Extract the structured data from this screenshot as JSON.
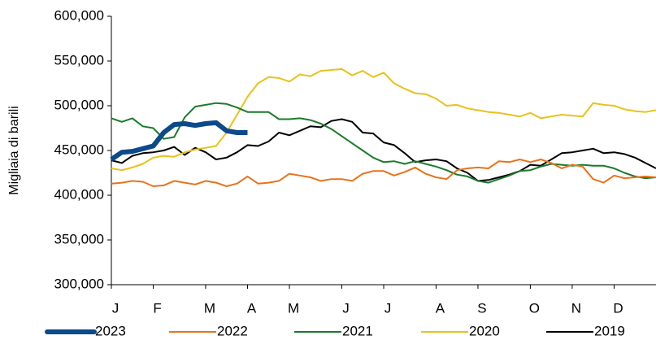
{
  "chart_data": {
    "type": "line",
    "y_label": "Migliaia di barili",
    "categories": [
      "J",
      null,
      null,
      null,
      "F",
      null,
      null,
      null,
      null,
      "M",
      null,
      null,
      null,
      "A",
      null,
      null,
      null,
      "M",
      null,
      null,
      null,
      null,
      "J",
      null,
      null,
      null,
      "J",
      null,
      null,
      null,
      null,
      "A",
      null,
      null,
      null,
      "S",
      null,
      null,
      null,
      null,
      "O",
      null,
      null,
      null,
      "N",
      null,
      null,
      null,
      "D",
      null,
      null,
      null,
      null
    ],
    "series": [
      {
        "name": "2023",
        "color": "#0c4a8a",
        "width": 6,
        "values": [
          440000,
          448000,
          449000,
          452000,
          455000,
          470000,
          479000,
          480000,
          478000,
          480000,
          481000,
          472000,
          470000,
          470000,
          null,
          null,
          null,
          null,
          null,
          null,
          null,
          null,
          null,
          null,
          null,
          null,
          null,
          null,
          null,
          null,
          null,
          null,
          null,
          null,
          null,
          null,
          null,
          null,
          null,
          null,
          null,
          null,
          null,
          null,
          null,
          null,
          null,
          null,
          null,
          null,
          null,
          null,
          null
        ]
      },
      {
        "name": "2022",
        "color": "#e8731a",
        "width": 2,
        "values": [
          413000,
          414000,
          416000,
          415000,
          410000,
          411000,
          416000,
          414000,
          412000,
          416000,
          414000,
          410000,
          413000,
          421000,
          413000,
          414000,
          416000,
          424000,
          422000,
          420000,
          416000,
          418000,
          418000,
          416000,
          424000,
          427000,
          427000,
          422000,
          426000,
          431000,
          424000,
          420000,
          418000,
          428000,
          430000,
          431000,
          430000,
          438000,
          437000,
          440000,
          437000,
          440000,
          436000,
          430000,
          434000,
          432000,
          418000,
          414000,
          422000,
          419000,
          420000,
          421000,
          420000
        ]
      },
      {
        "name": "2021",
        "color": "#1a7a2a",
        "width": 2,
        "values": [
          486000,
          482000,
          486000,
          477000,
          475000,
          463000,
          465000,
          487000,
          499000,
          501000,
          503000,
          502000,
          498000,
          493000,
          493000,
          493000,
          485000,
          485000,
          486000,
          484000,
          480000,
          474000,
          466000,
          458000,
          450000,
          442000,
          437000,
          438000,
          435000,
          438000,
          435000,
          432000,
          428000,
          423000,
          421000,
          416000,
          414000,
          418000,
          422000,
          427000,
          428000,
          432000,
          435000,
          434000,
          433000,
          434000,
          433000,
          433000,
          430000,
          425000,
          421000,
          419000,
          420000
        ]
      },
      {
        "name": "2020",
        "color": "#e8c21a",
        "width": 2,
        "values": [
          430000,
          428000,
          431000,
          435000,
          442000,
          444000,
          443000,
          448000,
          451000,
          453000,
          455000,
          470000,
          490000,
          510000,
          525000,
          532000,
          531000,
          527000,
          535000,
          533000,
          539000,
          540000,
          541000,
          534000,
          539000,
          532000,
          537000,
          525000,
          519000,
          514000,
          513000,
          508000,
          500000,
          501000,
          497000,
          495000,
          493000,
          492000,
          490000,
          488000,
          492000,
          486000,
          488000,
          490000,
          489000,
          488000,
          503000,
          501000,
          500000,
          496000,
          494000,
          493000,
          495000
        ]
      },
      {
        "name": "2019",
        "color": "#000000",
        "width": 2,
        "values": [
          439000,
          436000,
          444000,
          447000,
          448000,
          450000,
          454000,
          445000,
          453000,
          448000,
          440000,
          442000,
          448000,
          456000,
          455000,
          460000,
          470000,
          467000,
          472000,
          477000,
          476000,
          483000,
          485000,
          482000,
          470000,
          469000,
          459000,
          456000,
          447000,
          437000,
          439000,
          440000,
          438000,
          430000,
          425000,
          416000,
          417000,
          420000,
          423000,
          427000,
          434000,
          433000,
          440000,
          447000,
          448000,
          450000,
          452000,
          447000,
          448000,
          446000,
          442000,
          436000,
          430000
        ]
      }
    ],
    "ylim": [
      300000,
      600000
    ],
    "yticks": [
      {
        "value": 300000,
        "label": "300,000"
      },
      {
        "value": 350000,
        "label": "350,000"
      },
      {
        "value": 400000,
        "label": "400,000"
      },
      {
        "value": 450000,
        "label": "450,000"
      },
      {
        "value": 500000,
        "label": "500,000"
      },
      {
        "value": 550000,
        "label": "550,000"
      },
      {
        "value": 600000,
        "label": "600,000"
      }
    ],
    "legend": "bottom"
  }
}
